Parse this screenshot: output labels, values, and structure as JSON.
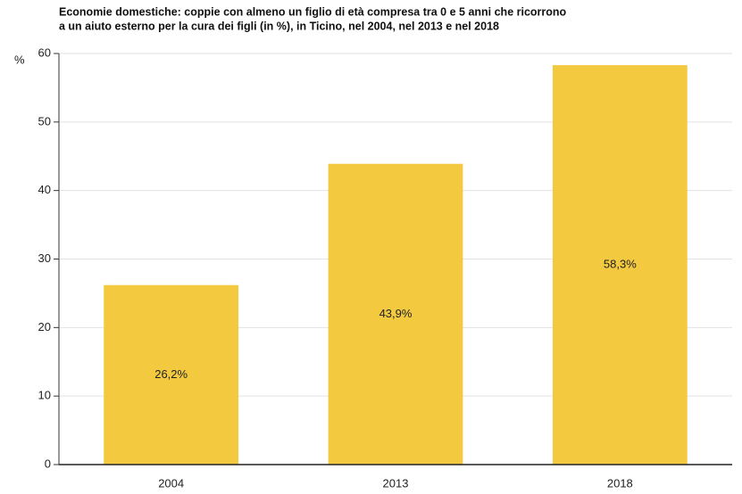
{
  "chart_data": {
    "type": "bar",
    "title": [
      "Economie domestiche: coppie con almeno un figlio di età compresa tra 0 e 5 anni che ricorrono",
      "a un aiuto esterno per la cura dei figli (in %), in Ticino, nel 2004, nel 2013 e nel 2018"
    ],
    "y_label": "%",
    "categories": [
      "2004",
      "2013",
      "2018"
    ],
    "values": [
      26.2,
      43.9,
      58.3
    ],
    "value_labels": [
      "26,2%",
      "43,9%",
      "58,3%"
    ],
    "color": "#f3c940",
    "ylim": [
      0,
      60
    ],
    "yticks": [
      0,
      10,
      20,
      30,
      40,
      50,
      60
    ],
    "grid": true
  }
}
